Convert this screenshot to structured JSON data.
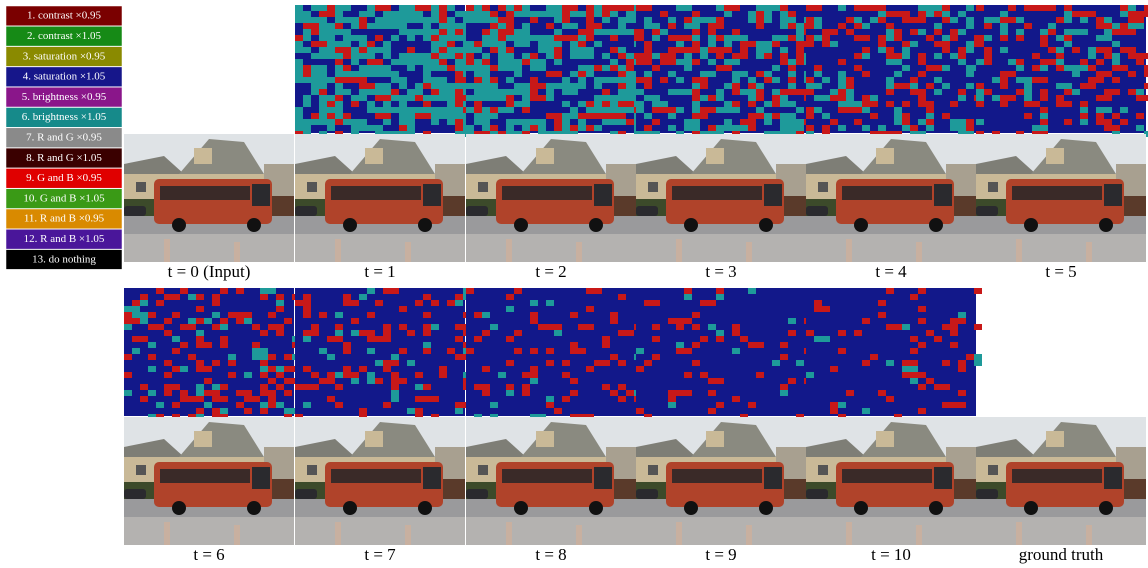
{
  "legend": [
    {
      "label": "1. contrast ×0.95",
      "color": "#7a0000"
    },
    {
      "label": "2. contrast ×1.05",
      "color": "#168a16"
    },
    {
      "label": "3. saturation ×0.95",
      "color": "#8a8a00"
    },
    {
      "label": "4. saturation ×1.05",
      "color": "#16168a"
    },
    {
      "label": "5. brightness ×0.95",
      "color": "#8a168a"
    },
    {
      "label": "6. brightness ×1.05",
      "color": "#168a8a"
    },
    {
      "label": "7. R and G ×0.95",
      "color": "#8a8a8a"
    },
    {
      "label": "8. R and G ×1.05",
      "color": "#3a0000"
    },
    {
      "label": "9. G and B ×0.95",
      "color": "#e00000"
    },
    {
      "label": "10. G and B ×1.05",
      "color": "#3a9a16"
    },
    {
      "label": "11. R and B ×0.95",
      "color": "#d98a00"
    },
    {
      "label": "12. R and B ×1.05",
      "color": "#4a169a"
    },
    {
      "label": "13. do nothing",
      "color": "#000000"
    }
  ],
  "captions_top": [
    "t = 0 (Input)",
    "t = 1",
    "t = 2",
    "t = 3",
    "t = 4",
    "t = 5"
  ],
  "captions_bottom": [
    "t = 6",
    "t = 7",
    "t = 8",
    "t = 9",
    "t = 10",
    "ground truth"
  ]
}
